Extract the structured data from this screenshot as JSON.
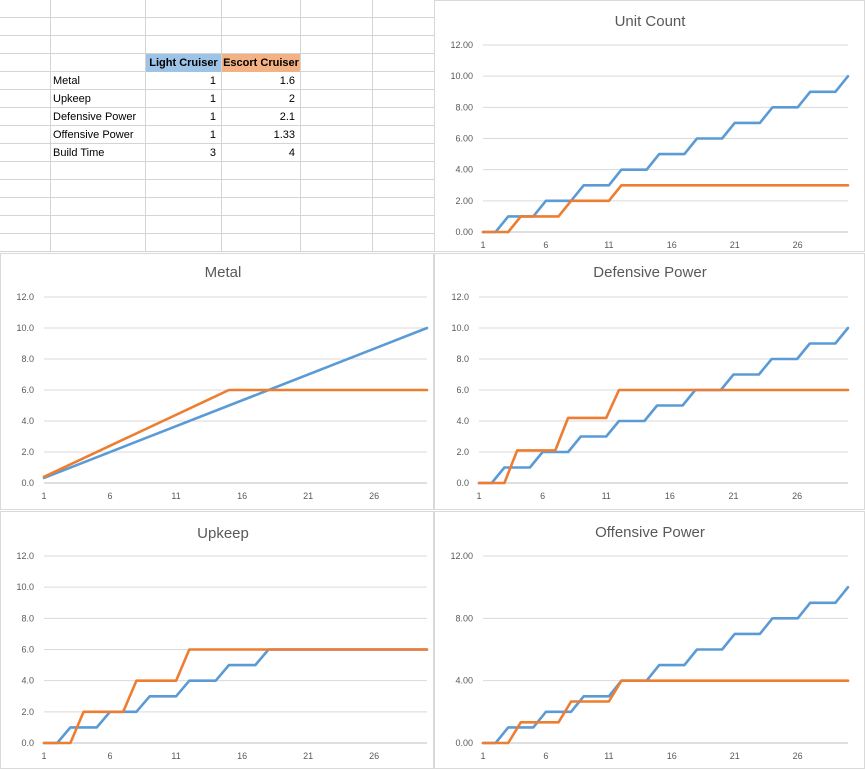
{
  "colors": {
    "light_cruiser": "#5b9bd5",
    "escort_cruiser": "#ed7d31",
    "light_header_bg": "#9dc3e6",
    "escort_header_bg": "#f4b183"
  },
  "table": {
    "headers": [
      "Light Cruiser",
      "Escort Cruiser"
    ],
    "rows": [
      {
        "label": "Metal",
        "light": "1",
        "escort": "1.6"
      },
      {
        "label": "Upkeep",
        "light": "1",
        "escort": "2"
      },
      {
        "label": "Defensive Power",
        "light": "1",
        "escort": "2.1"
      },
      {
        "label": "Offensive Power",
        "light": "1",
        "escort": "1.33"
      },
      {
        "label": "Build Time",
        "light": "3",
        "escort": "4"
      }
    ]
  },
  "chart_data": [
    {
      "type": "line",
      "title": "Unit Count",
      "x_ticks": [
        "1",
        "6",
        "11",
        "16",
        "21",
        "26"
      ],
      "x_range": [
        1,
        30
      ],
      "y_ticks": [
        "0.00",
        "2.00",
        "4.00",
        "6.00",
        "8.00",
        "10.00",
        "12.00"
      ],
      "ylim": [
        0,
        12
      ],
      "series": [
        {
          "color": "#5b9bd5",
          "x": [
            1,
            2,
            3,
            4,
            5,
            6,
            7,
            8,
            9,
            10,
            11,
            12,
            13,
            14,
            15,
            16,
            17,
            18,
            19,
            20,
            21,
            22,
            23,
            24,
            25,
            26,
            27,
            28,
            29,
            30
          ],
          "values": [
            0,
            0,
            1,
            1,
            1,
            2,
            2,
            2,
            3,
            3,
            3,
            4,
            4,
            4,
            5,
            5,
            5,
            6,
            6,
            6,
            7,
            7,
            7,
            8,
            8,
            8,
            9,
            9,
            9,
            10
          ]
        },
        {
          "color": "#ed7d31",
          "x": [
            1,
            2,
            3,
            4,
            5,
            6,
            7,
            8,
            9,
            10,
            11,
            12,
            13,
            14,
            15,
            16,
            17,
            18,
            19,
            20,
            21,
            22,
            23,
            24,
            25,
            26,
            27,
            28,
            29,
            30
          ],
          "values": [
            0,
            0,
            0,
            1,
            1,
            1,
            1,
            2,
            2,
            2,
            2,
            3,
            3,
            3,
            3,
            3,
            3,
            3,
            3,
            3,
            3,
            3,
            3,
            3,
            3,
            3,
            3,
            3,
            3,
            3
          ]
        }
      ]
    },
    {
      "type": "line",
      "title": "Metal",
      "x_ticks": [
        "1",
        "6",
        "11",
        "16",
        "21",
        "26"
      ],
      "x_range": [
        1,
        30
      ],
      "y_ticks": [
        "0.0",
        "2.0",
        "4.0",
        "6.0",
        "8.0",
        "10.0",
        "12.0"
      ],
      "ylim": [
        0,
        12
      ],
      "series": [
        {
          "color": "#5b9bd5",
          "x": [
            1,
            30
          ],
          "values": [
            0.33,
            10
          ]
        },
        {
          "color": "#ed7d31",
          "x": [
            1,
            4,
            7,
            10,
            13,
            15,
            30
          ],
          "values": [
            0.4,
            1.6,
            2.8,
            4.0,
            5.2,
            6,
            6
          ]
        }
      ]
    },
    {
      "type": "line",
      "title": "Defensive Power",
      "x_ticks": [
        "1",
        "6",
        "11",
        "16",
        "21",
        "26"
      ],
      "x_range": [
        1,
        30
      ],
      "y_ticks": [
        "0.0",
        "2.0",
        "4.0",
        "6.0",
        "8.0",
        "10.0",
        "12.0"
      ],
      "ylim": [
        0,
        12
      ],
      "series": [
        {
          "color": "#5b9bd5",
          "x": [
            1,
            2,
            3,
            4,
            5,
            6,
            7,
            8,
            9,
            10,
            11,
            12,
            13,
            14,
            15,
            16,
            17,
            18,
            19,
            20,
            21,
            22,
            23,
            24,
            25,
            26,
            27,
            28,
            29,
            30
          ],
          "values": [
            0,
            0,
            1,
            1,
            1,
            2,
            2,
            2,
            3,
            3,
            3,
            4,
            4,
            4,
            5,
            5,
            5,
            6,
            6,
            6,
            7,
            7,
            7,
            8,
            8,
            8,
            9,
            9,
            9,
            10
          ]
        },
        {
          "color": "#ed7d31",
          "x": [
            1,
            2,
            3,
            4,
            5,
            6,
            7,
            8,
            9,
            10,
            11,
            12,
            13,
            14,
            15,
            16,
            17,
            18,
            19,
            20,
            21,
            22,
            23,
            24,
            25,
            26,
            27,
            28,
            29,
            30
          ],
          "values": [
            0,
            0,
            0,
            2.1,
            2.1,
            2.1,
            2.1,
            4.2,
            4.2,
            4.2,
            4.2,
            6,
            6,
            6,
            6,
            6,
            6,
            6,
            6,
            6,
            6,
            6,
            6,
            6,
            6,
            6,
            6,
            6,
            6,
            6
          ]
        }
      ]
    },
    {
      "type": "line",
      "title": "Upkeep",
      "x_ticks": [
        "1",
        "6",
        "11",
        "16",
        "21",
        "26"
      ],
      "x_range": [
        1,
        30
      ],
      "y_ticks": [
        "0.0",
        "2.0",
        "4.0",
        "6.0",
        "8.0",
        "10.0",
        "12.0"
      ],
      "ylim": [
        0,
        12
      ],
      "series": [
        {
          "color": "#5b9bd5",
          "x": [
            1,
            2,
            3,
            4,
            5,
            6,
            7,
            8,
            9,
            10,
            11,
            12,
            13,
            14,
            15,
            16,
            17,
            18,
            19,
            20,
            21,
            22,
            23,
            24,
            25,
            26,
            27,
            28,
            29,
            30
          ],
          "values": [
            0,
            0,
            1,
            1,
            1,
            2,
            2,
            2,
            3,
            3,
            3,
            4,
            4,
            4,
            5,
            5,
            5,
            6,
            6,
            6,
            6,
            6,
            6,
            6,
            6,
            6,
            6,
            6,
            6,
            6
          ]
        },
        {
          "color": "#ed7d31",
          "x": [
            1,
            2,
            3,
            4,
            5,
            6,
            7,
            8,
            9,
            10,
            11,
            12,
            13,
            14,
            15,
            16,
            17,
            18,
            19,
            20,
            21,
            22,
            23,
            24,
            25,
            26,
            27,
            28,
            29,
            30
          ],
          "values": [
            0,
            0,
            0,
            2,
            2,
            2,
            2,
            4,
            4,
            4,
            4,
            6,
            6,
            6,
            6,
            6,
            6,
            6,
            6,
            6,
            6,
            6,
            6,
            6,
            6,
            6,
            6,
            6,
            6,
            6
          ]
        }
      ]
    },
    {
      "type": "line",
      "title": "Offensive Power",
      "x_ticks": [
        "1",
        "6",
        "11",
        "16",
        "21",
        "26"
      ],
      "x_range": [
        1,
        30
      ],
      "y_ticks": [
        "0.00",
        "4.00",
        "8.00",
        "12.00"
      ],
      "ylim": [
        0,
        12
      ],
      "series": [
        {
          "color": "#5b9bd5",
          "x": [
            1,
            2,
            3,
            4,
            5,
            6,
            7,
            8,
            9,
            10,
            11,
            12,
            13,
            14,
            15,
            16,
            17,
            18,
            19,
            20,
            21,
            22,
            23,
            24,
            25,
            26,
            27,
            28,
            29,
            30
          ],
          "values": [
            0,
            0,
            1,
            1,
            1,
            2,
            2,
            2,
            3,
            3,
            3,
            4,
            4,
            4,
            5,
            5,
            5,
            6,
            6,
            6,
            7,
            7,
            7,
            8,
            8,
            8,
            9,
            9,
            9,
            10
          ]
        },
        {
          "color": "#ed7d31",
          "x": [
            1,
            2,
            3,
            4,
            5,
            6,
            7,
            8,
            9,
            10,
            11,
            12,
            13,
            14,
            15,
            16,
            17,
            18,
            19,
            20,
            21,
            22,
            23,
            24,
            25,
            26,
            27,
            28,
            29,
            30
          ],
          "values": [
            0,
            0,
            0,
            1.33,
            1.33,
            1.33,
            1.33,
            2.66,
            2.66,
            2.66,
            2.66,
            4,
            4,
            4,
            4,
            4,
            4,
            4,
            4,
            4,
            4,
            4,
            4,
            4,
            4,
            4,
            4,
            4,
            4,
            4
          ]
        }
      ]
    }
  ]
}
